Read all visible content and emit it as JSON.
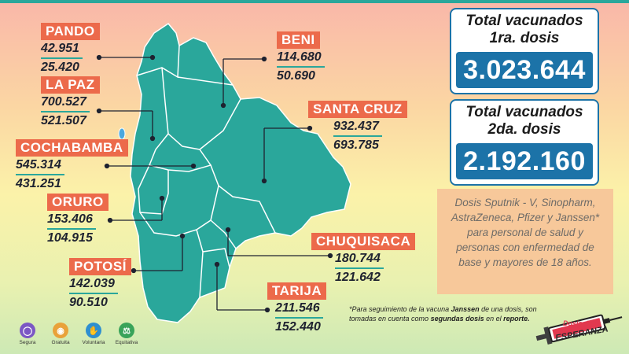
{
  "departments": {
    "pando": {
      "name": "PANDO",
      "dose1": "42.951",
      "dose2": "25.420"
    },
    "lapaz": {
      "name": "LA PAZ",
      "dose1": "700.527",
      "dose2": "521.507"
    },
    "cochabamba": {
      "name": "COCHABAMBA",
      "dose1": "545.314",
      "dose2": "431.251"
    },
    "oruro": {
      "name": "ORURO",
      "dose1": "153.406",
      "dose2": "104.915"
    },
    "potosi": {
      "name": "POTOSÍ",
      "dose1": "142.039",
      "dose2": "90.510"
    },
    "beni": {
      "name": "BENI",
      "dose1": "114.680",
      "dose2": "50.690"
    },
    "santacruz": {
      "name": "SANTA CRUZ",
      "dose1": "932.437",
      "dose2": "693.785"
    },
    "chuquisaca": {
      "name": "CHUQUISACA",
      "dose1": "180.744",
      "dose2": "121.642"
    },
    "tarija": {
      "name": "TARIJA",
      "dose1": "211.546",
      "dose2": "152.440"
    }
  },
  "totals": {
    "dose1": {
      "title_line1": "Total vacunados",
      "title_line2": "1ra. dosis",
      "value": "3.023.644"
    },
    "dose2": {
      "title_line1": "Total vacunados",
      "title_line2": "2da. dosis",
      "value": "2.192.160"
    }
  },
  "info": {
    "text": "Dosis Sputnik - V, Sinopharm, AstraZeneca, Pfizer y Janssen* para personal de salud y personas con enfermedad de base y mayores de 18 años."
  },
  "footnote": {
    "part1": "*Para seguimiento de la vacuna ",
    "bold1": "Janssen",
    "part2": " de una dosis, son tomadas en cuenta como ",
    "bold2": "segundas dosis",
    "part3": " en el ",
    "bold3": "reporte."
  },
  "badges": [
    {
      "label": "Segura",
      "icon": "shield-icon",
      "color": "#7b57c4"
    },
    {
      "label": "Gratuita",
      "icon": "coin-icon",
      "color": "#e9a23a"
    },
    {
      "label": "Voluntaria",
      "icon": "hand-icon",
      "color": "#2e8fd0"
    },
    {
      "label": "Equitativa",
      "icon": "scale-icon",
      "color": "#39a35a"
    }
  ],
  "logo": {
    "line1": "Dosis de",
    "line2": "ESPERANZA"
  },
  "colors": {
    "map": "#2aa79b",
    "label_bg": "#ec6a4b",
    "total_blue": "#1c73a8",
    "info_bg": "#f7c89a"
  }
}
